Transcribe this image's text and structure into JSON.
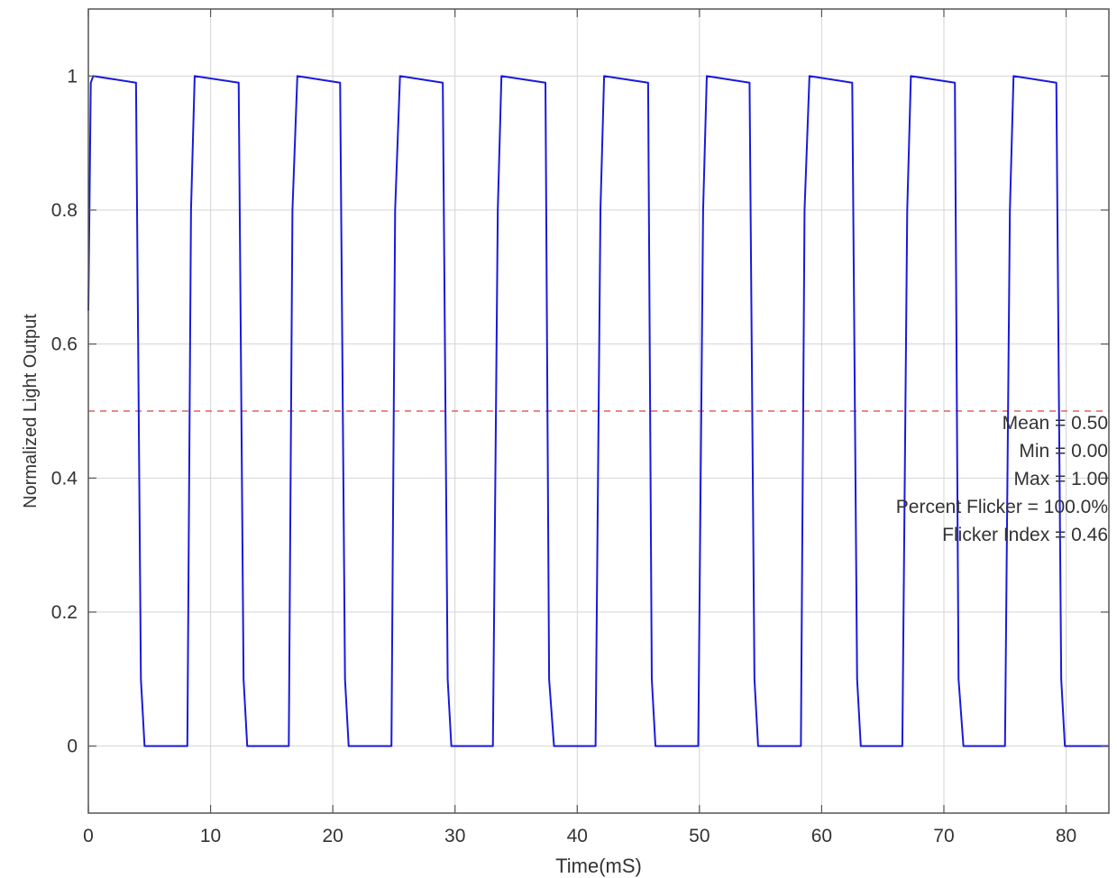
{
  "chart_data": {
    "type": "line",
    "xlabel": "Time(mS)",
    "ylabel": "Normalized Light Output",
    "xlim": [
      0,
      83.5
    ],
    "ylim": [
      -0.1,
      1.1
    ],
    "grid": true,
    "x_ticks": [
      0,
      10,
      20,
      30,
      40,
      50,
      60,
      70,
      80
    ],
    "x_tick_labels": [
      "0",
      "10",
      "20",
      "30",
      "40",
      "50",
      "60",
      "70",
      "80"
    ],
    "y_ticks": [
      0,
      0.2,
      0.4,
      0.6,
      0.8,
      1
    ],
    "y_tick_labels": [
      "0",
      "0.2",
      "0.4",
      "0.6",
      "0.8",
      "1"
    ],
    "series": [
      {
        "color": "#1a1adb",
        "x": [
          0,
          0.2,
          0.4,
          3.9,
          4.3,
          4.6,
          8.1,
          8.4,
          8.7,
          12.3,
          12.7,
          13.0,
          16.4,
          16.7,
          17.1,
          20.6,
          21.0,
          21.3,
          24.8,
          25.1,
          25.5,
          29.0,
          29.4,
          29.7,
          33.1,
          33.5,
          33.8,
          37.4,
          37.7,
          38.1,
          41.5,
          41.9,
          42.2,
          45.8,
          46.1,
          46.4,
          49.9,
          50.3,
          50.6,
          54.1,
          54.5,
          54.8,
          58.3,
          58.6,
          59.0,
          62.5,
          62.9,
          63.2,
          66.6,
          67.0,
          67.3,
          70.9,
          71.2,
          71.6,
          75.0,
          75.4,
          75.7,
          79.2,
          79.6,
          79.9,
          83.5
        ],
        "y": [
          0.65,
          0.99,
          1.0,
          0.99,
          0.1,
          0.0,
          0.0,
          0.8,
          1.0,
          0.99,
          0.1,
          0.0,
          0.0,
          0.8,
          1.0,
          0.99,
          0.1,
          0.0,
          0.0,
          0.8,
          1.0,
          0.99,
          0.1,
          0.0,
          0.0,
          0.8,
          1.0,
          0.99,
          0.1,
          0.0,
          0.0,
          0.8,
          1.0,
          0.99,
          0.1,
          0.0,
          0.0,
          0.8,
          1.0,
          0.99,
          0.1,
          0.0,
          0.0,
          0.8,
          1.0,
          0.99,
          0.1,
          0.0,
          0.0,
          0.8,
          1.0,
          0.99,
          0.1,
          0.0,
          0.0,
          0.8,
          1.0,
          0.99,
          0.1,
          0.0,
          0.0
        ]
      }
    ],
    "reference_line": {
      "y": 0.5,
      "style": "dashed",
      "color": "#e06060"
    },
    "annotations": [
      "Mean = 0.50",
      "Min = 0.00",
      "Max = 1.00",
      "Percent Flicker = 100.0%",
      "Flicker Index = 0.46"
    ]
  }
}
